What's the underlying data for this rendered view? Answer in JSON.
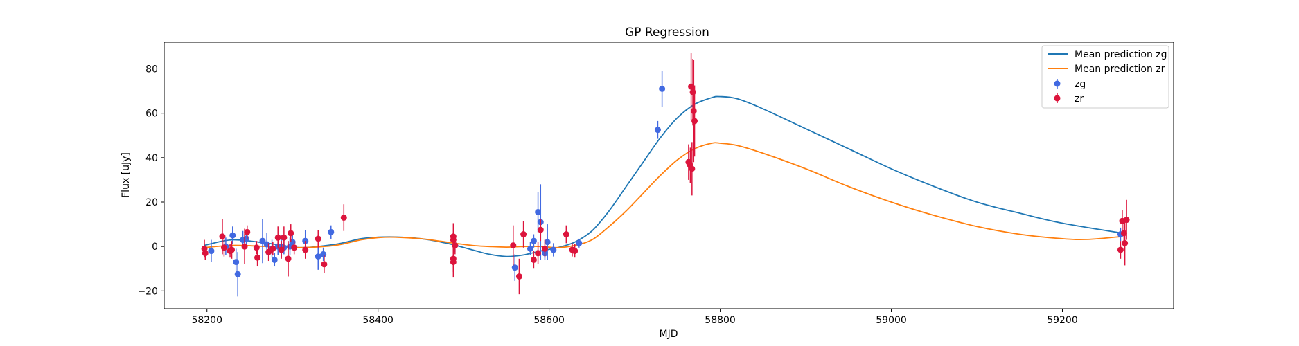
{
  "chart_data": {
    "type": "scatter",
    "title": "GP Regression",
    "xlabel": "MJD",
    "ylabel": "Flux [uJy]",
    "xlim": [
      58150,
      59330
    ],
    "ylim": [
      -28,
      92
    ],
    "xticks": [
      58200,
      58400,
      58600,
      58800,
      59000,
      59200
    ],
    "yticks": [
      -20,
      0,
      20,
      40,
      60,
      80
    ],
    "grid": false,
    "legend_position": "top-right",
    "lines": [
      {
        "name": "Mean prediction zg",
        "color": "#1f77b4",
        "x": [
          58197,
          58230,
          58270,
          58310,
          58350,
          58380,
          58400,
          58420,
          58450,
          58480,
          58510,
          58530,
          58550,
          58570,
          58590,
          58610,
          58630,
          58650,
          58670,
          58690,
          58710,
          58730,
          58750,
          58770,
          58790,
          58800,
          58820,
          58850,
          58900,
          58950,
          59000,
          59050,
          59100,
          59150,
          59200,
          59270
        ],
        "y": [
          0.5,
          3,
          1.5,
          -0.5,
          1,
          3.5,
          4.2,
          4.3,
          3.5,
          1.5,
          -1.5,
          -3.5,
          -4.5,
          -3.8,
          -2,
          -0.5,
          2,
          7,
          16,
          27,
          38,
          49,
          58,
          64,
          67,
          67.5,
          66.5,
          62,
          53,
          44,
          35,
          27,
          20,
          15,
          10.5,
          6
        ]
      },
      {
        "name": "Mean prediction zr",
        "color": "#ff7f0e",
        "x": [
          58197,
          58230,
          58270,
          58310,
          58350,
          58380,
          58400,
          58420,
          58450,
          58480,
          58510,
          58530,
          58550,
          58570,
          58590,
          58610,
          58630,
          58650,
          58670,
          58690,
          58710,
          58730,
          58750,
          58770,
          58790,
          58800,
          58820,
          58850,
          58900,
          58950,
          59000,
          59050,
          59100,
          59150,
          59200,
          59230,
          59270
        ],
        "y": [
          -0.5,
          0.5,
          0,
          -0.5,
          0.5,
          3,
          4,
          4.2,
          3.5,
          2,
          0.5,
          0,
          -0.3,
          0,
          0,
          -0.5,
          0.5,
          3,
          9,
          16,
          24,
          32,
          39,
          44,
          46.5,
          46.5,
          45.5,
          42,
          35,
          27,
          20,
          14,
          9,
          5.5,
          3.5,
          3.2,
          4.5
        ]
      }
    ],
    "series": [
      {
        "name": "zg",
        "color": "#4169e1",
        "points": [
          [
            58205,
            -2,
            5
          ],
          [
            58222,
            0,
            4
          ],
          [
            58230,
            5,
            4
          ],
          [
            58234,
            -7,
            6
          ],
          [
            58236,
            -12.5,
            10
          ],
          [
            58242,
            3,
            4
          ],
          [
            58246,
            3.5,
            4
          ],
          [
            58265,
            2.5,
            10
          ],
          [
            58270,
            1,
            5
          ],
          [
            58276,
            -1,
            4
          ],
          [
            58279,
            -6,
            3
          ],
          [
            58283,
            0,
            4
          ],
          [
            58287,
            0,
            5
          ],
          [
            58290,
            -0.5,
            3
          ],
          [
            58297,
            0,
            4
          ],
          [
            58300,
            2,
            3
          ],
          [
            58315,
            2.5,
            5
          ],
          [
            58330,
            -4.5,
            6
          ],
          [
            58336,
            -3.5,
            3
          ],
          [
            58345,
            6.5,
            3
          ],
          [
            58490,
            0.5,
            3
          ],
          [
            58560,
            -9.5,
            6
          ],
          [
            58578,
            -1,
            3
          ],
          [
            58582,
            2.5,
            3
          ],
          [
            58587,
            15.5,
            9
          ],
          [
            58590,
            11,
            17
          ],
          [
            58595,
            -3,
            3
          ],
          [
            58598,
            2,
            8
          ],
          [
            58605,
            -1.5,
            3
          ],
          [
            58635,
            1.5,
            2
          ],
          [
            58727,
            52.5,
            4
          ],
          [
            58732,
            71,
            8
          ],
          [
            59268,
            5.5,
            3
          ]
        ]
      },
      {
        "name": "zr",
        "color": "#dc143c",
        "points": [
          [
            58197,
            -1,
            4
          ],
          [
            58198,
            -3,
            3
          ],
          [
            58218,
            4.5,
            8
          ],
          [
            58220,
            -0.5,
            4
          ],
          [
            58227,
            -2,
            3
          ],
          [
            58229,
            -1.5,
            4
          ],
          [
            58244,
            0,
            8
          ],
          [
            58247,
            6.5,
            3
          ],
          [
            58258,
            -0.5,
            3
          ],
          [
            58259,
            -5,
            4
          ],
          [
            58272,
            -2.5,
            4
          ],
          [
            58277,
            -1,
            3
          ],
          [
            58283,
            4,
            5
          ],
          [
            58287,
            -1.5,
            4
          ],
          [
            58290,
            4,
            5
          ],
          [
            58295,
            -5.5,
            8
          ],
          [
            58298,
            6,
            4
          ],
          [
            58302,
            -0.5,
            3
          ],
          [
            58315,
            -1.5,
            4
          ],
          [
            58330,
            3.5,
            4
          ],
          [
            58337,
            -8,
            4
          ],
          [
            58360,
            13,
            6
          ],
          [
            58488,
            -5.5,
            6
          ],
          [
            58488,
            -7,
            7
          ],
          [
            58488,
            4.5,
            6
          ],
          [
            58488,
            3,
            3
          ],
          [
            58490,
            0.5,
            4
          ],
          [
            58558,
            0.5,
            9
          ],
          [
            58565,
            -13.5,
            8
          ],
          [
            58570,
            5.5,
            6
          ],
          [
            58582,
            -6,
            4
          ],
          [
            58587,
            -3,
            5
          ],
          [
            58590,
            7.5,
            5
          ],
          [
            58595,
            -1,
            4
          ],
          [
            58620,
            5.5,
            4
          ],
          [
            58627,
            -1.5,
            3
          ],
          [
            58630,
            -2,
            3
          ],
          [
            58763,
            38,
            8
          ],
          [
            58765,
            36.5,
            8
          ],
          [
            58766,
            72,
            15
          ],
          [
            58767,
            35,
            12
          ],
          [
            58768,
            69.5,
            15
          ],
          [
            58769,
            61,
            23
          ],
          [
            58770,
            56.5,
            16
          ],
          [
            59268,
            -1.5,
            4
          ],
          [
            59270,
            11.5,
            5
          ],
          [
            59272,
            6,
            6
          ],
          [
            59273,
            1.5,
            10
          ],
          [
            59275,
            12,
            9
          ]
        ]
      }
    ]
  }
}
